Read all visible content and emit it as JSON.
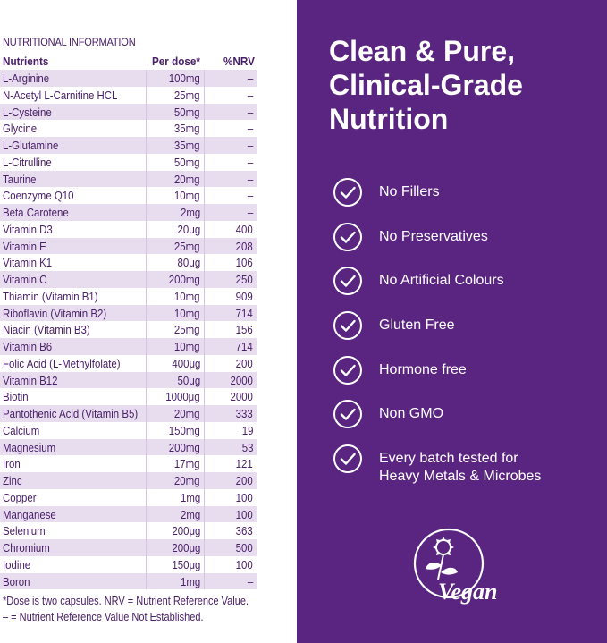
{
  "nutrition": {
    "title": "NUTRITIONAL INFORMATION",
    "headers": {
      "name": "Nutrients",
      "dose": "Per dose*",
      "nrv": "%NRV"
    },
    "rows": [
      {
        "name": "L-Arginine",
        "dose": "100mg",
        "nrv": "–"
      },
      {
        "name": "N-Acetyl L-Carnitine HCL",
        "dose": "25mg",
        "nrv": "–"
      },
      {
        "name": "L-Cysteine",
        "dose": "50mg",
        "nrv": "–"
      },
      {
        "name": "Glycine",
        "dose": "35mg",
        "nrv": "–"
      },
      {
        "name": "L-Glutamine",
        "dose": "35mg",
        "nrv": "–"
      },
      {
        "name": "L-Citrulline",
        "dose": "50mg",
        "nrv": "–"
      },
      {
        "name": "Taurine",
        "dose": "20mg",
        "nrv": "–"
      },
      {
        "name": "Coenzyme Q10",
        "dose": "10mg",
        "nrv": "–"
      },
      {
        "name": "Beta Carotene",
        "dose": "2mg",
        "nrv": "–"
      },
      {
        "name": "Vitamin D3",
        "dose": "20μg",
        "nrv": "400"
      },
      {
        "name": "Vitamin E",
        "dose": "25mg",
        "nrv": "208"
      },
      {
        "name": "Vitamin K1",
        "dose": "80μg",
        "nrv": "106"
      },
      {
        "name": "Vitamin C",
        "dose": "200mg",
        "nrv": "250"
      },
      {
        "name": "Thiamin (Vitamin B1)",
        "dose": "10mg",
        "nrv": "909"
      },
      {
        "name": "Riboflavin (Vitamin B2)",
        "dose": "10mg",
        "nrv": "714"
      },
      {
        "name": "Niacin (Vitamin B3)",
        "dose": "25mg",
        "nrv": "156"
      },
      {
        "name": "Vitamin B6",
        "dose": "10mg",
        "nrv": "714"
      },
      {
        "name": "Folic Acid (L-Methylfolate)",
        "dose": "400μg",
        "nrv": "200"
      },
      {
        "name": "Vitamin B12",
        "dose": "50μg",
        "nrv": "2000"
      },
      {
        "name": "Biotin",
        "dose": "1000μg",
        "nrv": "2000"
      },
      {
        "name": "Pantothenic Acid (Vitamin B5)",
        "dose": "20mg",
        "nrv": "333"
      },
      {
        "name": "Calcium",
        "dose": "150mg",
        "nrv": "19"
      },
      {
        "name": "Magnesium",
        "dose": "200mg",
        "nrv": "53"
      },
      {
        "name": "Iron",
        "dose": "17mg",
        "nrv": "121"
      },
      {
        "name": "Zinc",
        "dose": "20mg",
        "nrv": "200"
      },
      {
        "name": "Copper",
        "dose": "1mg",
        "nrv": "100"
      },
      {
        "name": "Manganese",
        "dose": "2mg",
        "nrv": "100"
      },
      {
        "name": "Selenium",
        "dose": "200μg",
        "nrv": "363"
      },
      {
        "name": "Chromium",
        "dose": "200μg",
        "nrv": "500"
      },
      {
        "name": "Iodine",
        "dose": "150μg",
        "nrv": "100"
      },
      {
        "name": "Boron",
        "dose": "1mg",
        "nrv": "–"
      }
    ],
    "footnote_1": "*Dose is two capsules. NRV = Nutrient Reference Value.",
    "footnote_2": "– = Nutrient Reference Value Not Established."
  },
  "panel": {
    "headline_1": "Clean & Pure,",
    "headline_2": "Clinical-Grade",
    "headline_3": "Nutrition",
    "features": [
      "No Fillers",
      "No Preservatives",
      "No Artificial Colours",
      "Gluten Free",
      "Hormone free",
      "Non GMO",
      "Every batch tested for",
      "Heavy Metals & Microbes"
    ],
    "vegan_logo_text": "Vegan",
    "icon": "check-circle-icon",
    "colors": {
      "panel": "#5a2580",
      "text_purple": "#4a2069",
      "row_stripe": "#e8dcef"
    }
  }
}
